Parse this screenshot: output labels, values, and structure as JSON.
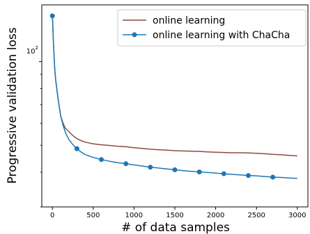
{
  "chart_data": {
    "type": "line",
    "xlabel": "# of data samples",
    "ylabel": "Progressive validation loss",
    "xlim": [
      -130,
      3130
    ],
    "ylim": [
      30,
      160
    ],
    "yscale": "log",
    "xticks": [
      0,
      500,
      1000,
      1500,
      2000,
      2500,
      3000
    ],
    "xtick_labels": [
      "0",
      "500",
      "1000",
      "1500",
      "2000",
      "2500",
      "3000"
    ],
    "ytick_major": [
      100
    ],
    "ytick_major_label": "10^2",
    "ytick_major_base": "10",
    "ytick_major_exp": "2",
    "grid": false,
    "legend_position": "top-right",
    "series": [
      {
        "name": "online learning",
        "color": "#8c4b3c",
        "marker": "none",
        "x": [
          0,
          5,
          10,
          20,
          30,
          40,
          60,
          80,
          100,
          130,
          160,
          200,
          250,
          300,
          350,
          400,
          500,
          600,
          700,
          800,
          900,
          1000,
          1100,
          1200,
          1300,
          1400,
          1500,
          1600,
          1700,
          1800,
          1900,
          2000,
          2100,
          2200,
          2300,
          2400,
          2500,
          2600,
          2700,
          2800,
          2900,
          3000
        ],
        "y": [
          146,
          135,
          122,
          105,
          93,
          86,
          77,
          70,
          64,
          60,
          57.5,
          56,
          54.2,
          52.8,
          52,
          51.3,
          50.6,
          50.2,
          49.9,
          49.6,
          49.4,
          49.0,
          48.7,
          48.4,
          48.2,
          48.0,
          47.8,
          47.7,
          47.6,
          47.5,
          47.3,
          47.2,
          47.1,
          47.0,
          47.0,
          46.9,
          46.8,
          46.6,
          46.4,
          46.2,
          46.0,
          45.8
        ]
      },
      {
        "name": "online learning with ChaCha",
        "color": "#1f77b4",
        "marker": "circle",
        "x": [
          0,
          5,
          10,
          20,
          30,
          40,
          60,
          80,
          100,
          130,
          160,
          200,
          250,
          300,
          350,
          400,
          500,
          600,
          700,
          800,
          900,
          1000,
          1100,
          1200,
          1300,
          1400,
          1500,
          1600,
          1700,
          1800,
          1900,
          2000,
          2100,
          2200,
          2300,
          2400,
          2500,
          2600,
          2700,
          2800,
          2900,
          3000
        ],
        "y": [
          146,
          135,
          122,
          105,
          93,
          86,
          77,
          70,
          64,
          59,
          55.5,
          52.5,
          50.3,
          48.6,
          47.3,
          46.3,
          45.2,
          44.4,
          43.8,
          43.3,
          42.9,
          42.5,
          42.1,
          41.7,
          41.4,
          41.1,
          40.8,
          40.5,
          40.3,
          40.1,
          39.9,
          39.7,
          39.5,
          39.3,
          39.1,
          38.9,
          38.8,
          38.6,
          38.4,
          38.3,
          38.1,
          38.0
        ],
        "markers_x": [
          0,
          300,
          600,
          900,
          1200,
          1500,
          1800,
          2100,
          2400,
          2700
        ],
        "markers_y": [
          146,
          48.6,
          44.4,
          42.9,
          41.7,
          40.8,
          40.1,
          39.5,
          38.9,
          38.4
        ]
      }
    ]
  }
}
